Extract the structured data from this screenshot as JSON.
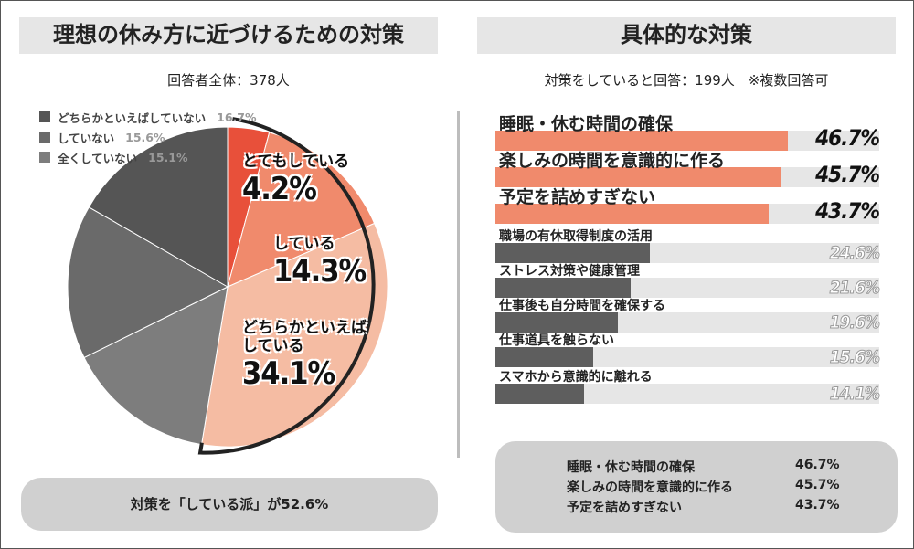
{
  "left": {
    "title": "理想の休み方に近づけるための対策",
    "subtitle": "回答者全体：378人",
    "footer": "対策を「している派」が52.6%"
  },
  "right": {
    "title": "具体的な対策",
    "subtitle": "対策をしていると回答：199人　※複数回答可",
    "summary": [
      {
        "label": "睡眠・休む時間の確保",
        "value": "46.7%"
      },
      {
        "label": "楽しみの時間を意識的に作る",
        "value": "45.7%"
      },
      {
        "label": "予定を詰めすぎない",
        "value": "43.7%"
      }
    ]
  },
  "colors": {
    "red": "#e8503a",
    "salmon": "#f08a6c",
    "peach": "#f5bca3",
    "gray1": "#555555",
    "gray2": "#6a6a6a",
    "gray3": "#7d7d7d",
    "bar_gray": "#5e5e5e",
    "bar_orange": "#f08a6c"
  },
  "chart_data": [
    {
      "type": "pie",
      "title": "理想の休み方に近づけるための対策",
      "subtitle": "回答者全体：378人",
      "slices": [
        {
          "label": "とてもしている",
          "value": 4.2,
          "display": "4.2%",
          "color": "#e8503a"
        },
        {
          "label": "している",
          "value": 14.3,
          "display": "14.3%",
          "color": "#f08a6c"
        },
        {
          "label": "どちらかといえばしている",
          "label_lines": [
            "どちらかといえば",
            "している"
          ],
          "value": 34.1,
          "display": "34.1%",
          "color": "#f5bca3"
        },
        {
          "label": "全くしていない",
          "value": 15.1,
          "display": "15.1%",
          "color": "#7d7d7d"
        },
        {
          "label": "していない",
          "value": 15.6,
          "display": "15.6%",
          "color": "#6a6a6a"
        },
        {
          "label": "どちらかといえばしていない",
          "value": 16.7,
          "display": "16.7%",
          "color": "#555555"
        }
      ],
      "legend": [
        {
          "label": "どちらかといえばしていない",
          "display": "16.7%",
          "color": "#555555"
        },
        {
          "label": "していない",
          "display": "15.6%",
          "color": "#6a6a6a"
        },
        {
          "label": "全くしていない",
          "display": "15.1%",
          "color": "#7d7d7d"
        }
      ],
      "legend_position": "top-left"
    },
    {
      "type": "bar",
      "orientation": "horizontal",
      "title": "具体的な対策",
      "subtitle": "対策をしていると回答：199人　※複数回答可",
      "xlim": [
        0,
        100
      ],
      "bars": [
        {
          "label": "睡眠・休む時間の確保",
          "value": 46.7,
          "display": "46.7%",
          "highlight": true
        },
        {
          "label": "楽しみの時間を意識的に作る",
          "value": 45.7,
          "display": "45.7%",
          "highlight": true
        },
        {
          "label": "予定を詰めすぎない",
          "value": 43.7,
          "display": "43.7%",
          "highlight": true
        },
        {
          "label": "職場の有休取得制度の活用",
          "value": 24.6,
          "display": "24.6%",
          "highlight": false
        },
        {
          "label": "ストレス対策や健康管理",
          "value": 21.6,
          "display": "21.6%",
          "highlight": false
        },
        {
          "label": "仕事後も自分時間を確保する",
          "value": 19.6,
          "display": "19.6%",
          "highlight": false
        },
        {
          "label": "仕事道具を触らない",
          "value": 15.6,
          "display": "15.6%",
          "highlight": false
        },
        {
          "label": "スマホから意識的に離れる",
          "value": 14.1,
          "display": "14.1%",
          "highlight": false
        }
      ]
    }
  ]
}
